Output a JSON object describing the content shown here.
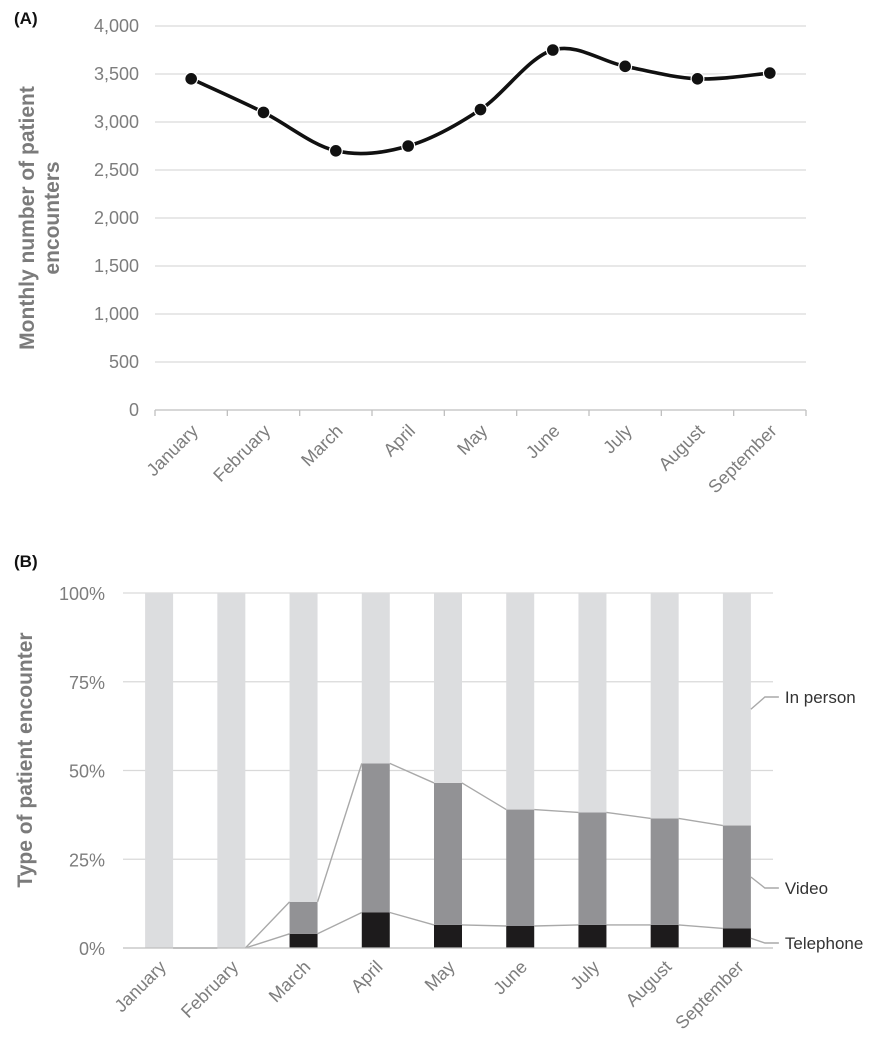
{
  "chart_data": [
    {
      "panel": "(A)",
      "type": "line",
      "smooth": true,
      "categories": [
        "January",
        "February",
        "March",
        "April",
        "May",
        "June",
        "July",
        "August",
        "September"
      ],
      "values": [
        3450,
        3100,
        2700,
        2750,
        3130,
        3750,
        3580,
        3450,
        3510
      ],
      "ylabel": [
        "Monthly number of patient",
        "encounters"
      ],
      "ylim": [
        0,
        4000
      ],
      "yticks": [
        0,
        500,
        1000,
        1500,
        2000,
        2500,
        3000,
        3500,
        4000
      ],
      "ytick_labels": [
        "0",
        "500",
        "1,000",
        "1,500",
        "2,000",
        "2,500",
        "3,000",
        "3,500",
        "4,000"
      ],
      "grid": true,
      "colors": {
        "line": "#111111",
        "grid": "#d9d9d9",
        "axis": "#bfbfbf"
      }
    },
    {
      "panel": "(B)",
      "type": "bar",
      "stacked": "percent",
      "categories": [
        "January",
        "February",
        "March",
        "April",
        "May",
        "June",
        "July",
        "August",
        "September"
      ],
      "series": [
        {
          "name": "Telephone",
          "values": [
            0,
            0,
            4,
            10,
            6.5,
            6.2,
            6.5,
            6.5,
            5.5
          ],
          "color": "#1d1b1c"
        },
        {
          "name": "Video",
          "values": [
            0,
            0,
            9,
            42,
            40,
            32.8,
            31.7,
            30,
            29
          ],
          "color": "#929295"
        },
        {
          "name": "In person",
          "values": [
            100,
            100,
            87,
            48,
            53.5,
            61,
            61.8,
            63.5,
            65.5
          ],
          "color": "#dcdddf"
        }
      ],
      "ylabel": "Type of patient encounter",
      "ylim": [
        0,
        100
      ],
      "yticks": [
        0,
        25,
        50,
        75,
        100
      ],
      "ytick_labels": [
        "0%",
        "25%",
        "50%",
        "75%",
        "100%"
      ],
      "grid": true,
      "legend": "right",
      "colors": {
        "connector": "#a9a9a9",
        "grid": "#d9d9d9",
        "axis": "#bfbfbf"
      }
    }
  ]
}
